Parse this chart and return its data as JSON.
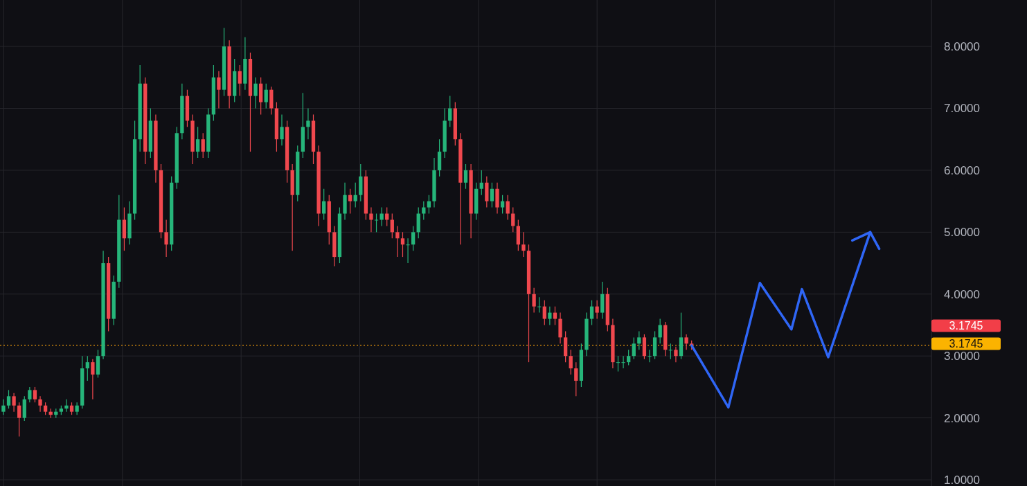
{
  "chart_data": {
    "type": "candlestick",
    "categories": [
      null,
      null,
      null,
      null,
      null,
      null,
      null,
      null,
      null,
      null,
      null,
      null,
      null,
      null,
      null,
      null,
      null,
      null,
      null,
      null,
      null,
      null,
      null,
      null,
      null,
      null,
      null,
      null,
      null,
      null,
      null,
      null,
      null,
      null,
      null,
      null,
      null,
      null,
      null,
      null,
      null,
      null,
      null,
      null,
      null,
      null,
      null,
      null,
      null,
      null,
      null,
      null,
      null,
      null,
      null,
      null,
      null,
      null,
      null,
      null,
      null,
      null,
      null,
      null,
      null,
      null,
      null,
      null,
      null,
      null,
      null,
      null,
      null,
      null,
      null,
      null,
      null,
      null,
      null,
      null,
      null,
      null,
      null,
      null,
      null,
      null,
      null,
      null,
      null,
      null,
      null,
      null,
      null,
      null,
      null,
      null,
      null,
      null,
      null,
      null,
      null,
      null,
      null,
      null,
      null,
      null,
      null,
      null,
      null,
      null,
      null,
      null,
      null,
      null,
      null,
      null,
      null,
      null,
      null,
      null,
      null,
      null,
      null,
      null,
      null,
      null,
      null,
      null,
      null,
      null,
      null,
      null,
      null,
      null,
      null,
      null,
      null,
      null,
      null,
      null,
      null,
      null,
      null,
      null,
      null,
      null,
      null,
      null,
      null,
      null,
      null,
      null,
      null,
      null,
      null,
      null,
      null,
      null,
      null,
      null,
      null,
      null,
      null,
      null,
      null,
      null,
      null,
      null,
      null,
      null,
      null,
      null,
      null,
      null,
      null,
      null,
      null
    ],
    "ohlc": [
      [
        2.1,
        2.3,
        2.05,
        2.2
      ],
      [
        2.2,
        2.45,
        2.15,
        2.35
      ],
      [
        2.35,
        2.4,
        2.1,
        2.2
      ],
      [
        2.2,
        2.25,
        1.7,
        2.0
      ],
      [
        2.0,
        2.35,
        1.95,
        2.3
      ],
      [
        2.3,
        2.5,
        2.25,
        2.45
      ],
      [
        2.45,
        2.5,
        2.25,
        2.3
      ],
      [
        2.3,
        2.35,
        2.1,
        2.2
      ],
      [
        2.2,
        2.25,
        2.05,
        2.1
      ],
      [
        2.1,
        2.15,
        2.0,
        2.05
      ],
      [
        2.05,
        2.15,
        2.0,
        2.1
      ],
      [
        2.1,
        2.2,
        2.05,
        2.15
      ],
      [
        2.15,
        2.3,
        2.1,
        2.2
      ],
      [
        2.2,
        2.25,
        2.05,
        2.1
      ],
      [
        2.1,
        2.25,
        2.05,
        2.2
      ],
      [
        2.2,
        3.0,
        2.15,
        2.8
      ],
      [
        2.8,
        3.0,
        2.6,
        2.9
      ],
      [
        2.9,
        2.95,
        2.3,
        2.7
      ],
      [
        2.7,
        3.1,
        2.65,
        3.0
      ],
      [
        3.0,
        4.7,
        2.95,
        4.5
      ],
      [
        4.5,
        4.6,
        3.4,
        3.6
      ],
      [
        3.6,
        4.3,
        3.5,
        4.2
      ],
      [
        4.2,
        5.6,
        4.1,
        5.2
      ],
      [
        5.2,
        5.4,
        4.7,
        4.9
      ],
      [
        4.9,
        5.5,
        4.8,
        5.3
      ],
      [
        5.3,
        6.8,
        5.2,
        6.5
      ],
      [
        6.5,
        7.7,
        6.3,
        7.4
      ],
      [
        7.4,
        7.5,
        6.1,
        6.3
      ],
      [
        6.3,
        7.0,
        6.2,
        6.8
      ],
      [
        6.8,
        6.9,
        5.8,
        6.0
      ],
      [
        6.0,
        6.1,
        4.9,
        5.0
      ],
      [
        5.0,
        5.2,
        4.6,
        4.8
      ],
      [
        4.8,
        5.9,
        4.7,
        5.8
      ],
      [
        5.8,
        6.7,
        5.7,
        6.6
      ],
      [
        6.6,
        7.4,
        6.5,
        7.2
      ],
      [
        7.2,
        7.3,
        6.7,
        6.8
      ],
      [
        6.8,
        6.9,
        6.1,
        6.3
      ],
      [
        6.3,
        6.7,
        6.2,
        6.5
      ],
      [
        6.5,
        6.6,
        6.2,
        6.3
      ],
      [
        6.3,
        7.0,
        6.2,
        6.9
      ],
      [
        6.9,
        7.7,
        6.8,
        7.5
      ],
      [
        7.5,
        7.6,
        7.0,
        7.3
      ],
      [
        7.3,
        8.3,
        7.2,
        8.0
      ],
      [
        8.0,
        8.1,
        7.0,
        7.2
      ],
      [
        7.2,
        7.8,
        7.1,
        7.6
      ],
      [
        7.6,
        7.7,
        7.2,
        7.4
      ],
      [
        7.4,
        8.15,
        7.3,
        7.8
      ],
      [
        7.8,
        7.9,
        6.3,
        7.2
      ],
      [
        7.2,
        7.5,
        7.0,
        7.4
      ],
      [
        7.4,
        7.5,
        6.9,
        7.1
      ],
      [
        7.1,
        7.4,
        7.0,
        7.3
      ],
      [
        7.3,
        7.35,
        6.9,
        7.0
      ],
      [
        7.0,
        7.1,
        6.3,
        6.5
      ],
      [
        6.5,
        6.9,
        6.4,
        6.7
      ],
      [
        6.7,
        6.8,
        5.8,
        6.0
      ],
      [
        6.0,
        6.1,
        4.7,
        5.6
      ],
      [
        5.6,
        6.4,
        5.5,
        6.3
      ],
      [
        6.3,
        7.25,
        6.2,
        6.7
      ],
      [
        6.7,
        7.0,
        6.5,
        6.8
      ],
      [
        6.8,
        6.9,
        6.1,
        6.3
      ],
      [
        6.3,
        6.4,
        5.1,
        5.3
      ],
      [
        5.3,
        5.7,
        5.2,
        5.5
      ],
      [
        5.5,
        5.6,
        4.8,
        5.0
      ],
      [
        5.0,
        5.1,
        4.45,
        4.6
      ],
      [
        4.6,
        5.4,
        4.5,
        5.3
      ],
      [
        5.3,
        5.8,
        5.2,
        5.6
      ],
      [
        5.6,
        5.7,
        5.3,
        5.5
      ],
      [
        5.5,
        5.8,
        5.4,
        5.6
      ],
      [
        5.6,
        6.1,
        5.5,
        5.9
      ],
      [
        5.9,
        6.0,
        5.2,
        5.3
      ],
      [
        5.3,
        5.4,
        5.0,
        5.2
      ],
      [
        5.2,
        5.3,
        5.0,
        5.2
      ],
      [
        5.2,
        5.4,
        5.1,
        5.3
      ],
      [
        5.3,
        5.4,
        5.1,
        5.2
      ],
      [
        5.2,
        5.3,
        4.9,
        5.0
      ],
      [
        5.0,
        5.1,
        4.6,
        4.9
      ],
      [
        4.9,
        5.0,
        4.6,
        4.8
      ],
      [
        4.8,
        4.9,
        4.5,
        4.8
      ],
      [
        4.8,
        5.1,
        4.7,
        5.0
      ],
      [
        5.0,
        5.4,
        4.9,
        5.3
      ],
      [
        5.3,
        5.5,
        5.2,
        5.4
      ],
      [
        5.4,
        5.6,
        5.3,
        5.5
      ],
      [
        5.5,
        6.2,
        5.4,
        6.0
      ],
      [
        6.0,
        6.5,
        5.9,
        6.3
      ],
      [
        6.3,
        7.0,
        6.2,
        6.8
      ],
      [
        6.8,
        7.2,
        6.7,
        7.0
      ],
      [
        7.0,
        7.1,
        6.4,
        6.5
      ],
      [
        6.5,
        6.6,
        4.8,
        5.8
      ],
      [
        5.8,
        6.1,
        5.7,
        6.0
      ],
      [
        6.0,
        6.1,
        4.9,
        5.3
      ],
      [
        5.3,
        5.8,
        5.2,
        5.7
      ],
      [
        5.7,
        6.0,
        5.6,
        5.8
      ],
      [
        5.8,
        5.9,
        5.4,
        5.5
      ],
      [
        5.5,
        5.8,
        5.4,
        5.7
      ],
      [
        5.7,
        5.8,
        5.3,
        5.4
      ],
      [
        5.4,
        5.6,
        5.3,
        5.5
      ],
      [
        5.5,
        5.6,
        5.2,
        5.3
      ],
      [
        5.3,
        5.4,
        5.0,
        5.1
      ],
      [
        5.1,
        5.2,
        4.7,
        4.8
      ],
      [
        4.8,
        5.0,
        4.6,
        4.7
      ],
      [
        4.7,
        4.8,
        2.9,
        4.0
      ],
      [
        4.0,
        4.1,
        3.7,
        3.8
      ],
      [
        3.8,
        3.95,
        3.7,
        3.8
      ],
      [
        3.8,
        3.9,
        3.5,
        3.6
      ],
      [
        3.6,
        3.8,
        3.5,
        3.7
      ],
      [
        3.7,
        3.8,
        3.5,
        3.6
      ],
      [
        3.6,
        3.7,
        3.2,
        3.3
      ],
      [
        3.3,
        3.4,
        2.9,
        3.0
      ],
      [
        3.0,
        3.1,
        2.7,
        2.8
      ],
      [
        2.8,
        2.9,
        2.35,
        2.6
      ],
      [
        2.6,
        3.2,
        2.5,
        3.1
      ],
      [
        3.1,
        3.7,
        3.0,
        3.6
      ],
      [
        3.6,
        3.9,
        3.5,
        3.8
      ],
      [
        3.8,
        3.9,
        3.6,
        3.7
      ],
      [
        3.7,
        4.2,
        3.6,
        4.0
      ],
      [
        4.0,
        4.1,
        3.4,
        3.5
      ],
      [
        3.5,
        3.6,
        2.8,
        2.9
      ],
      [
        2.9,
        3.0,
        2.75,
        2.9
      ],
      [
        2.9,
        3.0,
        2.8,
        2.9
      ],
      [
        2.9,
        3.1,
        2.85,
        3.0
      ],
      [
        3.0,
        3.3,
        2.95,
        3.2
      ],
      [
        3.2,
        3.4,
        3.1,
        3.3
      ],
      [
        3.3,
        3.35,
        2.95,
        3.0
      ],
      [
        3.0,
        3.1,
        2.9,
        3.0
      ],
      [
        3.0,
        3.4,
        2.95,
        3.3
      ],
      [
        3.3,
        3.6,
        3.2,
        3.5
      ],
      [
        3.5,
        3.55,
        3.0,
        3.1
      ],
      [
        3.1,
        3.2,
        2.95,
        3.1
      ],
      [
        3.1,
        3.15,
        2.9,
        3.0
      ],
      [
        3.0,
        3.7,
        2.95,
        3.3
      ],
      [
        3.3,
        3.35,
        3.1,
        3.2
      ],
      [
        3.2,
        3.25,
        3.1,
        3.17
      ],
      null,
      null,
      null,
      null,
      null,
      null,
      null,
      null,
      null,
      null,
      null,
      null,
      null,
      null,
      null,
      null,
      null,
      null,
      null,
      null,
      null,
      null,
      null,
      null,
      null,
      null,
      null,
      null,
      null,
      null,
      null,
      null,
      null,
      null,
      null,
      null,
      null,
      null,
      null,
      null,
      null,
      null,
      null,
      null,
      null
    ],
    "colors": [
      "#26b57a",
      "#26b57a",
      "#f0484e",
      "#f0484e",
      "#26b57a",
      "#26b57a",
      "#f0484e",
      "#f0484e",
      "#f0484e",
      "#f0484e",
      "#26b57a",
      "#26b57a",
      "#26b57a",
      "#f0484e",
      "#26b57a",
      "#26b57a",
      "#26b57a",
      "#f0484e",
      "#26b57a",
      "#26b57a",
      "#f0484e",
      "#26b57a",
      "#26b57a",
      "#f0484e",
      "#26b57a",
      "#26b57a",
      "#26b57a",
      "#f0484e",
      "#26b57a",
      "#f0484e",
      "#f0484e",
      "#f0484e",
      "#26b57a",
      "#26b57a",
      "#26b57a",
      "#f0484e",
      "#f0484e",
      "#26b57a",
      "#f0484e",
      "#26b57a",
      "#26b57a",
      "#f0484e",
      "#26b57a",
      "#f0484e",
      "#26b57a",
      "#f0484e",
      "#26b57a",
      "#f0484e",
      "#26b57a",
      "#f0484e",
      "#26b57a",
      "#f0484e",
      "#f0484e",
      "#26b57a",
      "#f0484e",
      "#f0484e",
      "#26b57a",
      "#26b57a",
      "#26b57a",
      "#f0484e",
      "#f0484e",
      "#26b57a",
      "#f0484e",
      "#f0484e",
      "#26b57a",
      "#26b57a",
      "#f0484e",
      "#26b57a",
      "#26b57a",
      "#f0484e",
      "#f0484e",
      "#26b57a",
      "#26b57a",
      "#f0484e",
      "#f0484e",
      "#f0484e",
      "#f0484e",
      "#26b57a",
      "#26b57a",
      "#26b57a",
      "#26b57a",
      "#26b57a",
      "#26b57a",
      "#26b57a",
      "#26b57a",
      "#26b57a",
      "#f0484e",
      "#f0484e",
      "#26b57a",
      "#f0484e",
      "#26b57a",
      "#26b57a",
      "#f0484e",
      "#26b57a",
      "#f0484e",
      "#26b57a",
      "#f0484e",
      "#f0484e",
      "#f0484e",
      "#f0484e",
      "#f0484e",
      "#f0484e",
      "#26b57a",
      "#f0484e",
      "#26b57a",
      "#f0484e",
      "#f0484e",
      "#f0484e",
      "#f0484e",
      "#f0484e",
      "#26b57a",
      "#26b57a",
      "#26b57a",
      "#f0484e",
      "#26b57a",
      "#f0484e",
      "#f0484e",
      "#26b57a",
      "#26b57a",
      "#26b57a",
      "#26b57a",
      "#26b57a",
      "#f0484e",
      "#26b57a",
      "#26b57a",
      "#26b57a",
      "#f0484e",
      "#26b57a",
      "#f0484e",
      "#26b57a",
      "#f0484e",
      "#f0484e",
      null,
      null,
      null,
      null,
      null,
      null,
      null,
      null,
      null,
      null,
      null,
      null,
      null,
      null,
      null,
      null,
      null,
      null,
      null,
      null,
      null,
      null,
      null,
      null,
      null,
      null,
      null,
      null,
      null,
      null,
      null,
      null,
      null,
      null,
      null,
      null,
      null,
      null,
      null,
      null,
      null,
      null,
      null,
      null,
      null
    ],
    "series": [
      {
        "type": "line",
        "color": "#2f66f6",
        "values": [
          null,
          null,
          null,
          null,
          null,
          null,
          null,
          null,
          null,
          null,
          null,
          null,
          null,
          null,
          null,
          null,
          null,
          null,
          null,
          null,
          null,
          null,
          null,
          null,
          null,
          null,
          null,
          null,
          null,
          null,
          null,
          null,
          null,
          null,
          null,
          null,
          null,
          null,
          null,
          null,
          null,
          null,
          null,
          null,
          null,
          null,
          null,
          null,
          null,
          null,
          null,
          null,
          null,
          null,
          null,
          null,
          null,
          null,
          null,
          null,
          null,
          null,
          null,
          null,
          null,
          null,
          null,
          null,
          null,
          null,
          null,
          null,
          null,
          null,
          null,
          null,
          null,
          null,
          null,
          null,
          null,
          null,
          null,
          null,
          null,
          null,
          null,
          null,
          null,
          null,
          null,
          null,
          null,
          null,
          null,
          null,
          null,
          null,
          null,
          null,
          null,
          null,
          null,
          null,
          null,
          null,
          null,
          null,
          null,
          null,
          null,
          null,
          null,
          null,
          null,
          null,
          null,
          null,
          null,
          null,
          null,
          null,
          null,
          null,
          null,
          null,
          null,
          null,
          null,
          null,
          null,
          3.17,
          null,
          null,
          null,
          null,
          null,
          null,
          2.17,
          null,
          null,
          null,
          null,
          null,
          4.18,
          null,
          null,
          null,
          null,
          null,
          3.43,
          null,
          4.08,
          null,
          null,
          null,
          null,
          2.98,
          null,
          null,
          null,
          null,
          null,
          null,
          null,
          5.0,
          null,
          null,
          null,
          null,
          null,
          null,
          null,
          null,
          null,
          null,
          null
        ]
      }
    ],
    "ylim": [
      0.9,
      8.75
    ],
    "yticks": [
      {
        "value": 1,
        "label": "1.0000"
      },
      {
        "value": 2,
        "label": "2.0000"
      },
      {
        "value": 3,
        "label": "3.0000"
      },
      {
        "value": 4,
        "label": "4.0000"
      },
      {
        "value": 5,
        "label": "5.0000"
      },
      {
        "value": 6,
        "label": "6.0000"
      },
      {
        "value": 7,
        "label": "7.0000"
      },
      {
        "value": 8,
        "label": "8.0000"
      }
    ],
    "tick_labels": "y",
    "grid": true,
    "ref_lines": [
      {
        "axis": "y",
        "value": 3.1745,
        "label": "3.1745",
        "color": "#f23e48",
        "line_style": "dotted"
      },
      {
        "axis": "y",
        "value": 3.1745,
        "label": "3.1745",
        "color": "#fbb300",
        "line_style": "dotted"
      }
    ]
  }
}
